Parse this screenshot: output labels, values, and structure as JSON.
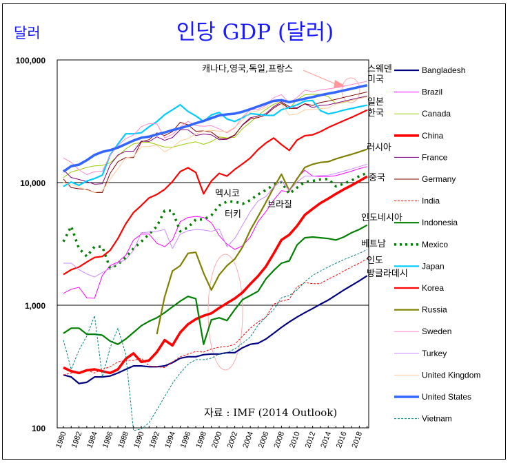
{
  "chart_data": {
    "type": "line",
    "title": "인당 GDP (달러)",
    "unit_label": "달러",
    "xlabel": "",
    "ylabel": "달러",
    "yscale": "log",
    "ylim": [
      100,
      100000
    ],
    "xlim": [
      1980,
      2019
    ],
    "grid": "horizontal-major",
    "legend_position": "right",
    "ytick_values": [
      100,
      1000,
      10000,
      100000
    ],
    "ytick_labels": [
      "100",
      "1,000",
      "10,000",
      "100,000"
    ],
    "xtick_labels": [
      "1980",
      "1982",
      "1984",
      "1986",
      "1988",
      "1990",
      "1992",
      "1994",
      "1996",
      "1998",
      "2000",
      "2002",
      "2004",
      "2006",
      "2008",
      "2010",
      "2012",
      "2014",
      "2016",
      "2018"
    ],
    "x": [
      1980,
      1981,
      1982,
      1983,
      1984,
      1985,
      1986,
      1987,
      1988,
      1989,
      1990,
      1991,
      1992,
      1993,
      1994,
      1995,
      1996,
      1997,
      1998,
      1999,
      2000,
      2001,
      2002,
      2003,
      2004,
      2005,
      2006,
      2007,
      2008,
      2009,
      2010,
      2011,
      2012,
      2013,
      2014,
      2015,
      2016,
      2017,
      2018,
      2019
    ],
    "source": "자료 : IMF (2014 Outlook)",
    "series": [
      {
        "name": "Bangladesh",
        "color": "#000080",
        "style": "solid",
        "weight": "medium",
        "values": [
          270,
          260,
          230,
          235,
          260,
          260,
          265,
          280,
          300,
          320,
          320,
          315,
          315,
          320,
          340,
          370,
          380,
          380,
          395,
          400,
          400,
          410,
          410,
          450,
          480,
          490,
          530,
          590,
          660,
          730,
          800,
          870,
          940,
          1020,
          1100,
          1210,
          1330,
          1450,
          1580,
          1740
        ]
      },
      {
        "name": "Brazil",
        "color": "#ff00ff",
        "style": "solid",
        "weight": "thin",
        "values": [
          1250,
          1350,
          1400,
          1150,
          1140,
          1750,
          2100,
          2250,
          2550,
          3400,
          3800,
          3800,
          3200,
          3000,
          3400,
          4800,
          5200,
          5300,
          5200,
          4700,
          3700,
          3150,
          2850,
          3050,
          3600,
          4800,
          5800,
          7200,
          8600,
          8400,
          10900,
          12600,
          11300,
          11200,
          11200,
          11400,
          11900,
          12400,
          13000,
          13500
        ]
      },
      {
        "name": "Canada",
        "color": "#99cc00",
        "style": "solid",
        "weight": "thin",
        "values": [
          11000,
          12200,
          12700,
          13300,
          13700,
          13800,
          14500,
          16500,
          18800,
          20700,
          21200,
          21300,
          20400,
          19500,
          19400,
          20200,
          20900,
          21500,
          20500,
          21600,
          23600,
          23100,
          23400,
          27500,
          31000,
          35400,
          39500,
          43500,
          45600,
          40000,
          47500,
          52000,
          52500,
          52400,
          50300,
          43900,
          45000,
          46800,
          48500,
          50200
        ]
      },
      {
        "name": "China",
        "color": "#ff0000",
        "style": "solid",
        "weight": "thick",
        "values": [
          310,
          290,
          280,
          295,
          300,
          290,
          280,
          300,
          365,
          405,
          345,
          355,
          415,
          520,
          470,
          600,
          700,
          770,
          820,
          860,
          950,
          1040,
          1135,
          1270,
          1490,
          1730,
          2070,
          2640,
          3410,
          3750,
          4430,
          5450,
          6100,
          6800,
          7400,
          8100,
          8800,
          9500,
          10300,
          11200
        ]
      },
      {
        "name": "France",
        "color": "#800080",
        "style": "solid",
        "weight": "thin",
        "values": [
          12700,
          11000,
          10600,
          10200,
          9700,
          9800,
          13900,
          16800,
          18000,
          18000,
          21800,
          21600,
          23600,
          22100,
          23300,
          26900,
          26900,
          24200,
          24900,
          24500,
          22400,
          22500,
          24300,
          29600,
          33800,
          34900,
          36500,
          41600,
          45500,
          41600,
          40700,
          43800,
          40900,
          42600,
          43000,
          44500,
          46000,
          47600,
          49200,
          50800
        ]
      },
      {
        "name": "Germany",
        "color": "#800000",
        "style": "solid",
        "weight": "thin",
        "values": [
          10700,
          9100,
          8900,
          8800,
          8300,
          8300,
          11900,
          14800,
          16000,
          16000,
          21500,
          22400,
          25400,
          24200,
          26000,
          31000,
          29600,
          26200,
          26400,
          25800,
          23100,
          22800,
          24500,
          29400,
          33000,
          33900,
          35600,
          40600,
          44300,
          40300,
          40200,
          44000,
          42600,
          45000,
          46200,
          47800,
          49500,
          51200,
          53000,
          54900
        ]
      },
      {
        "name": "India",
        "color": "#ff0000",
        "style": "dashed",
        "weight": "thin",
        "values": [
          270,
          280,
          285,
          295,
          280,
          300,
          315,
          345,
          355,
          355,
          370,
          320,
          315,
          310,
          345,
          380,
          400,
          420,
          415,
          440,
          455,
          460,
          480,
          560,
          650,
          730,
          800,
          1020,
          1080,
          1120,
          1410,
          1530,
          1500,
          1500,
          1630,
          1750,
          1900,
          2050,
          2200,
          2400
        ]
      },
      {
        "name": "Indonesia",
        "color": "#008000",
        "style": "solid",
        "weight": "medium",
        "values": [
          590,
          650,
          650,
          580,
          580,
          570,
          510,
          480,
          530,
          600,
          680,
          740,
          790,
          870,
          970,
          1080,
          1180,
          1130,
          480,
          760,
          790,
          750,
          920,
          1110,
          1200,
          1300,
          1640,
          1920,
          2200,
          2300,
          3100,
          3550,
          3600,
          3550,
          3500,
          3400,
          3600,
          3900,
          4150,
          4500
        ]
      },
      {
        "name": "Mexico",
        "color": "#008000",
        "style": "dotted",
        "weight": "thick",
        "values": [
          3300,
          4400,
          2900,
          2500,
          3000,
          3000,
          2000,
          2150,
          2450,
          2900,
          3300,
          3800,
          4400,
          5900,
          5900,
          4000,
          4300,
          5000,
          5000,
          5400,
          6500,
          7000,
          7000,
          6700,
          7200,
          8000,
          8700,
          9600,
          10100,
          8100,
          9100,
          10100,
          10300,
          10600,
          10700,
          9300,
          9800,
          10400,
          11300,
          12000
        ]
      },
      {
        "name": "Japan",
        "color": "#00ccff",
        "style": "solid",
        "weight": "medium",
        "values": [
          9300,
          10100,
          9500,
          10300,
          10800,
          11500,
          16800,
          20600,
          25000,
          25000,
          25500,
          28500,
          31400,
          35800,
          39200,
          43100,
          38000,
          35000,
          31500,
          35600,
          37300,
          33000,
          31500,
          33800,
          36500,
          36000,
          35400,
          35300,
          39300,
          40900,
          43100,
          46200,
          46700,
          38600,
          36300,
          37400,
          39000,
          40200,
          41500,
          42800
        ]
      },
      {
        "name": "Korea",
        "color": "#ff0000",
        "style": "solid",
        "weight": "medium",
        "values": [
          1780,
          1950,
          2050,
          2250,
          2450,
          2500,
          2800,
          3500,
          4600,
          5700,
          6500,
          7500,
          8000,
          8800,
          10200,
          12300,
          13200,
          12100,
          8100,
          10300,
          11900,
          11300,
          12800,
          14200,
          15900,
          18600,
          21000,
          23100,
          20400,
          18300,
          22200,
          24100,
          24500,
          26000,
          28100,
          30000,
          32000,
          34000,
          36400,
          39000
        ]
      },
      {
        "name": "Russia",
        "color": "#808000",
        "style": "solid",
        "weight": "medium",
        "values": [
          null,
          null,
          null,
          null,
          null,
          null,
          null,
          null,
          null,
          null,
          null,
          null,
          580,
          1170,
          1900,
          2100,
          2650,
          2700,
          1830,
          1330,
          1770,
          2100,
          2380,
          2980,
          4100,
          5300,
          6900,
          9100,
          11700,
          8600,
          10700,
          13300,
          14100,
          14600,
          14800,
          15600,
          16300,
          17000,
          17800,
          18700
        ]
      },
      {
        "name": "Sweden",
        "color": "#ff88cc",
        "style": "solid",
        "weight": "thin",
        "values": [
          15900,
          14600,
          12700,
          11600,
          12300,
          12400,
          16700,
          20000,
          22800,
          24400,
          28600,
          30300,
          30100,
          23100,
          24700,
          28500,
          31600,
          29100,
          28800,
          29100,
          27400,
          25400,
          27900,
          34400,
          39100,
          39500,
          42600,
          49300,
          52200,
          44400,
          49400,
          56700,
          55000,
          57000,
          58000,
          59300,
          61000,
          63000,
          65000,
          67000
        ]
      },
      {
        "name": "Turkey",
        "color": "#cc88ff",
        "style": "solid",
        "weight": "thin",
        "values": [
          2200,
          2200,
          1950,
          1800,
          1700,
          1850,
          2000,
          2200,
          2350,
          2800,
          3900,
          3950,
          4000,
          4150,
          2900,
          3800,
          4050,
          4150,
          4100,
          4000,
          4200,
          3000,
          3500,
          4500,
          5800,
          7100,
          7700,
          9200,
          10300,
          8600,
          10100,
          11300,
          11300,
          11400,
          11500,
          11900,
          12400,
          12900,
          13500,
          14100
        ]
      },
      {
        "name": "United Kingdom",
        "color": "#ffcc99",
        "style": "solid",
        "weight": "thin",
        "values": [
          10000,
          9600,
          9200,
          8700,
          8300,
          8600,
          10600,
          13000,
          15900,
          16300,
          19600,
          19700,
          20200,
          17800,
          19300,
          21900,
          22800,
          24900,
          26300,
          26700,
          26300,
          25900,
          28300,
          32300,
          37400,
          38500,
          40800,
          46500,
          43500,
          35500,
          36200,
          39100,
          39300,
          40100,
          40600,
          43700,
          45400,
          47000,
          48500,
          50000
        ]
      },
      {
        "name": "United States",
        "color": "#3366ff",
        "style": "solid",
        "weight": "thick",
        "values": [
          12300,
          13600,
          14000,
          15200,
          16800,
          17800,
          18400,
          19300,
          20600,
          22000,
          23200,
          23700,
          24700,
          25600,
          26800,
          27800,
          29000,
          30500,
          31800,
          33500,
          35300,
          36000,
          36500,
          37800,
          39700,
          41800,
          44000,
          46400,
          47000,
          45300,
          46800,
          48300,
          49800,
          51600,
          53100,
          54600,
          56400,
          58200,
          60200,
          62200
        ]
      },
      {
        "name": "Vietnam",
        "color": "#008080",
        "style": "dashed",
        "weight": "thin",
        "values": [
          520,
          300,
          430,
          560,
          820,
          260,
          450,
          650,
          400,
          95,
          98,
          110,
          140,
          180,
          230,
          280,
          330,
          360,
          360,
          370,
          400,
          410,
          440,
          490,
          550,
          690,
          800,
          920,
          1150,
          1200,
          1330,
          1550,
          1750,
          1900,
          2050,
          2200,
          2350,
          2500,
          2650,
          2850
        ]
      }
    ],
    "annotations": [
      {
        "text": "캐나다,영국,독일,프랑스",
        "type": "callout-with-arrow"
      },
      {
        "text": "스웨덴",
        "target": "Sweden"
      },
      {
        "text": "미국",
        "target": "United States"
      },
      {
        "text": "일본",
        "target": "Japan"
      },
      {
        "text": "한국",
        "target": "Korea"
      },
      {
        "text": "러시아",
        "target": "Russia"
      },
      {
        "text": "중국",
        "target": "China"
      },
      {
        "text": "멕시코",
        "target": "Mexico"
      },
      {
        "text": "터키",
        "target": "Turkey"
      },
      {
        "text": "브라질",
        "target": "Brazil"
      },
      {
        "text": "인도네시아",
        "target": "Indonesia"
      },
      {
        "text": "베트남",
        "target": "Vietnam"
      },
      {
        "text": "인도",
        "target": "India"
      },
      {
        "text": "방글라데시",
        "target": "Bangladesh"
      }
    ]
  }
}
